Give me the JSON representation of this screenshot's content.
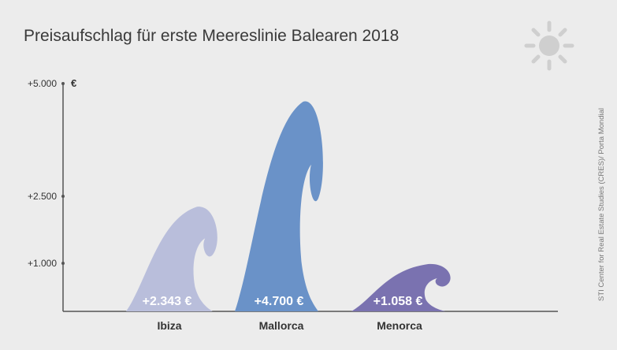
{
  "chart_data": {
    "type": "bar",
    "title": "Preisaufschlag für erste Meereslinie Balearen 2018",
    "unit_label": "€",
    "categories": [
      "Ibiza",
      "Mallorca",
      "Menorca"
    ],
    "values": [
      2343,
      4700,
      1058
    ],
    "value_labels": [
      "+2.343 €",
      "+4.700 €",
      "+1.058 €"
    ],
    "y_ticks": [
      {
        "value": 1000,
        "label": "+1.000"
      },
      {
        "value": 2500,
        "label": "+2.500"
      },
      {
        "value": 5000,
        "label": "+5.000"
      }
    ],
    "ylim": [
      0,
      5000
    ],
    "y_scale": "nonlinear (tick labels unevenly spaced)",
    "grid": false,
    "source": "STI Center for Real Estate Studies (CRES)/ Porta Mondial",
    "colors": [
      "#b9bedb",
      "#6a92c8",
      "#7a72b0"
    ],
    "decoration": "sun-icon"
  }
}
